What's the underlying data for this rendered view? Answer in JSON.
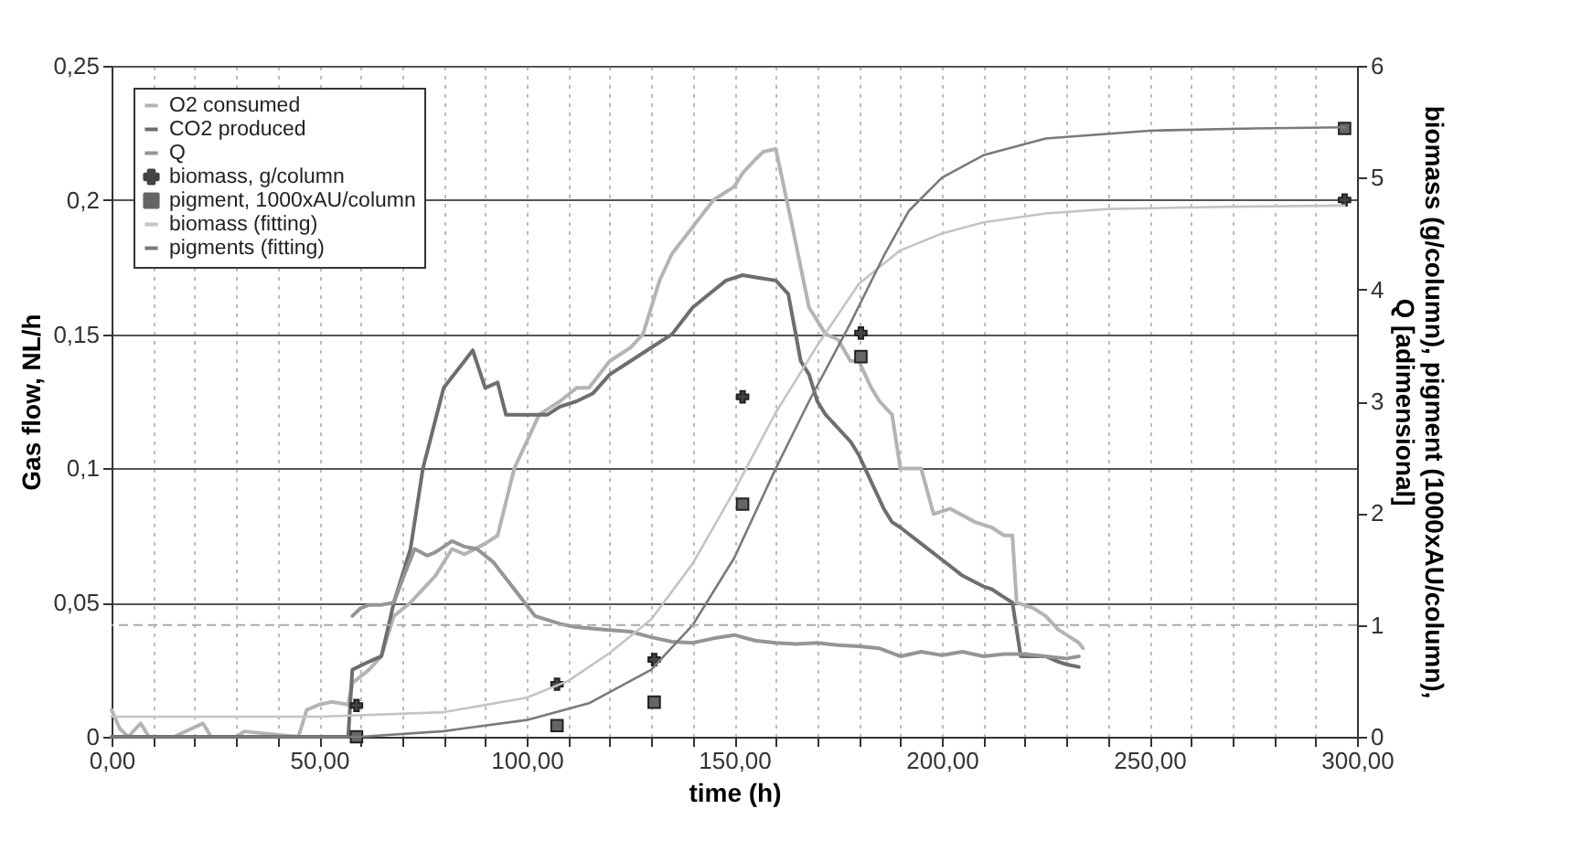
{
  "chart_data": {
    "type": "line",
    "xlabel": "time (h)",
    "ylabel": "Gas flow, NL/h",
    "y2label": "biomass (g/column), pigment (1000xAU/column), Q [adimensional]",
    "xlim": [
      0,
      300
    ],
    "xticks": [
      {
        "value": 0,
        "label": "0,00"
      },
      {
        "value": 10,
        "label": null
      },
      {
        "value": 20,
        "label": null
      },
      {
        "value": 30,
        "label": null
      },
      {
        "value": 40,
        "label": null
      },
      {
        "value": 50,
        "label": "50,00"
      },
      {
        "value": 60,
        "label": null
      },
      {
        "value": 70,
        "label": null
      },
      {
        "value": 80,
        "label": null
      },
      {
        "value": 90,
        "label": null
      },
      {
        "value": 100,
        "label": "100,00"
      },
      {
        "value": 110,
        "label": null
      },
      {
        "value": 120,
        "label": null
      },
      {
        "value": 130,
        "label": null
      },
      {
        "value": 140,
        "label": null
      },
      {
        "value": 150,
        "label": "150,00"
      },
      {
        "value": 160,
        "label": null
      },
      {
        "value": 170,
        "label": null
      },
      {
        "value": 180,
        "label": null
      },
      {
        "value": 190,
        "label": null
      },
      {
        "value": 200,
        "label": "200,00"
      },
      {
        "value": 210,
        "label": null
      },
      {
        "value": 220,
        "label": null
      },
      {
        "value": 230,
        "label": null
      },
      {
        "value": 240,
        "label": null
      },
      {
        "value": 250,
        "label": "250,00"
      },
      {
        "value": 260,
        "label": null
      },
      {
        "value": 270,
        "label": null
      },
      {
        "value": 280,
        "label": null
      },
      {
        "value": 290,
        "label": null
      },
      {
        "value": 300,
        "label": "300,00"
      }
    ],
    "ylim": [
      0,
      0.25
    ],
    "yticks": [
      0,
      {
        "value": 0.05,
        "label": "0,05"
      },
      {
        "value": 0.1,
        "label": "0,1"
      },
      {
        "value": 0.15,
        "label": "0,15"
      },
      {
        "value": 0.2,
        "label": "0,2"
      },
      {
        "value": 0.25,
        "label": "0,25"
      }
    ],
    "y2lim": [
      0,
      6
    ],
    "y2ticks": [
      0,
      1,
      2,
      3,
      4,
      5,
      6
    ],
    "grid": true,
    "legend": "top left",
    "ref_lines": [
      {
        "axis": "y2",
        "value": 1,
        "color": "#aaaaaa",
        "line_style": "dashed"
      }
    ],
    "series": [
      {
        "name": "O2 consumed",
        "color": "#b4b4b4",
        "x": [
          0,
          2,
          4,
          7,
          9,
          15,
          22,
          24,
          30,
          32,
          45,
          47,
          50,
          53,
          57,
          58,
          62,
          65,
          68,
          72,
          75,
          78,
          82,
          85,
          90,
          93,
          97,
          100,
          103,
          108,
          112,
          115,
          120,
          125,
          128,
          132,
          135,
          140,
          145,
          150,
          152,
          155,
          157,
          160,
          164,
          168,
          172,
          175,
          178,
          180,
          183,
          185,
          188,
          190,
          195,
          198,
          202,
          208,
          212,
          215,
          217,
          218,
          222,
          225,
          228,
          230,
          233,
          234
        ],
        "values": [
          0.01,
          0.003,
          0,
          0.005,
          0,
          0,
          0.005,
          0,
          0,
          0.002,
          0,
          0.01,
          0.012,
          0.013,
          0.012,
          0.02,
          0.025,
          0.03,
          0.045,
          0.05,
          0.055,
          0.06,
          0.07,
          0.068,
          0.072,
          0.075,
          0.1,
          0.11,
          0.12,
          0.125,
          0.13,
          0.13,
          0.14,
          0.145,
          0.15,
          0.17,
          0.18,
          0.19,
          0.2,
          0.205,
          0.21,
          0.215,
          0.218,
          0.219,
          0.19,
          0.16,
          0.15,
          0.148,
          0.14,
          0.14,
          0.13,
          0.125,
          0.12,
          0.1,
          0.1,
          0.083,
          0.085,
          0.08,
          0.078,
          0.075,
          0.075,
          0.05,
          0.048,
          0.045,
          0.04,
          0.038,
          0.035,
          0.033
        ]
      },
      {
        "name": "CO2 produced",
        "color": "#6e6e6e",
        "x": [
          0,
          57,
          58,
          62,
          65,
          68,
          72,
          75,
          80,
          85,
          87,
          90,
          93,
          95,
          100,
          105,
          108,
          112,
          116,
          120,
          125,
          130,
          135,
          140,
          144,
          148,
          152,
          156,
          160,
          163,
          166,
          168,
          170,
          172,
          175,
          178,
          180,
          183,
          186,
          188,
          190,
          195,
          200,
          205,
          210,
          212,
          215,
          217,
          219,
          222,
          225,
          228,
          230,
          233
        ],
        "values": [
          0,
          0,
          0.025,
          0.028,
          0.03,
          0.05,
          0.07,
          0.1,
          0.13,
          0.14,
          0.144,
          0.13,
          0.132,
          0.12,
          0.12,
          0.12,
          0.123,
          0.125,
          0.128,
          0.135,
          0.14,
          0.145,
          0.15,
          0.16,
          0.165,
          0.17,
          0.172,
          0.171,
          0.17,
          0.165,
          0.14,
          0.135,
          0.125,
          0.12,
          0.115,
          0.11,
          0.105,
          0.095,
          0.085,
          0.08,
          0.078,
          0.072,
          0.066,
          0.06,
          0.056,
          0.055,
          0.052,
          0.05,
          0.03,
          0.03,
          0.03,
          0.028,
          0.027,
          0.026
        ]
      },
      {
        "name": "Q",
        "axis": "y2",
        "color": "#959595",
        "x": [
          58,
          60,
          62,
          65,
          68,
          70,
          73,
          76,
          78,
          80,
          82,
          85,
          88,
          92,
          97,
          102,
          108,
          112,
          118,
          125,
          130,
          135,
          140,
          145,
          150,
          155,
          160,
          165,
          170,
          175,
          180,
          185,
          190,
          195,
          200,
          205,
          210,
          215,
          220,
          225,
          230,
          233
        ],
        "values": [
          1.08,
          1.15,
          1.18,
          1.18,
          1.2,
          1.4,
          1.68,
          1.62,
          1.65,
          1.7,
          1.75,
          1.7,
          1.68,
          1.56,
          1.32,
          1.08,
          1.01,
          0.98,
          0.96,
          0.94,
          0.89,
          0.85,
          0.84,
          0.88,
          0.91,
          0.86,
          0.84,
          0.83,
          0.84,
          0.82,
          0.81,
          0.79,
          0.72,
          0.76,
          0.73,
          0.76,
          0.72,
          0.74,
          0.74,
          0.72,
          0.7,
          0.72
        ]
      },
      {
        "name": "biomass, g/column",
        "type": "scatter",
        "axis": "y2",
        "marker": "cross",
        "color": "#444444",
        "x": [
          59,
          107.3,
          130.7,
          152,
          180.5,
          297
        ],
        "values": [
          0.28,
          0.47,
          0.69,
          3.04,
          3.61,
          4.8
        ]
      },
      {
        "name": "pigment, 1000xAU/column",
        "type": "scatter",
        "axis": "y2",
        "marker": "square",
        "color": "#666666",
        "x": [
          59,
          107.3,
          130.7,
          152,
          180.5,
          297
        ],
        "values": [
          0,
          0.1,
          0.31,
          2.08,
          3.4,
          5.44
        ]
      },
      {
        "name": "biomass (fitting)",
        "axis": "y2",
        "color": "#c4c4c4",
        "x": [
          0,
          50,
          80,
          100,
          110,
          120,
          130,
          140,
          150,
          160,
          170,
          180,
          190,
          200,
          210,
          225,
          240,
          270,
          297
        ],
        "values": [
          0.18,
          0.18,
          0.22,
          0.35,
          0.5,
          0.75,
          1.05,
          1.55,
          2.2,
          2.9,
          3.5,
          4.05,
          4.35,
          4.5,
          4.6,
          4.68,
          4.72,
          4.74,
          4.75
        ]
      },
      {
        "name": "pigments (fitting)",
        "axis": "y2",
        "color": "#7a7a7a",
        "x": [
          0,
          60,
          80,
          100,
          115,
          130,
          140,
          150,
          160,
          168,
          178,
          186,
          192,
          200,
          210,
          225,
          250,
          275,
          297
        ],
        "values": [
          0,
          0,
          0.05,
          0.15,
          0.3,
          0.6,
          1.0,
          1.6,
          2.4,
          3.0,
          3.7,
          4.3,
          4.7,
          5.0,
          5.2,
          5.35,
          5.42,
          5.44,
          5.45
        ]
      }
    ]
  }
}
